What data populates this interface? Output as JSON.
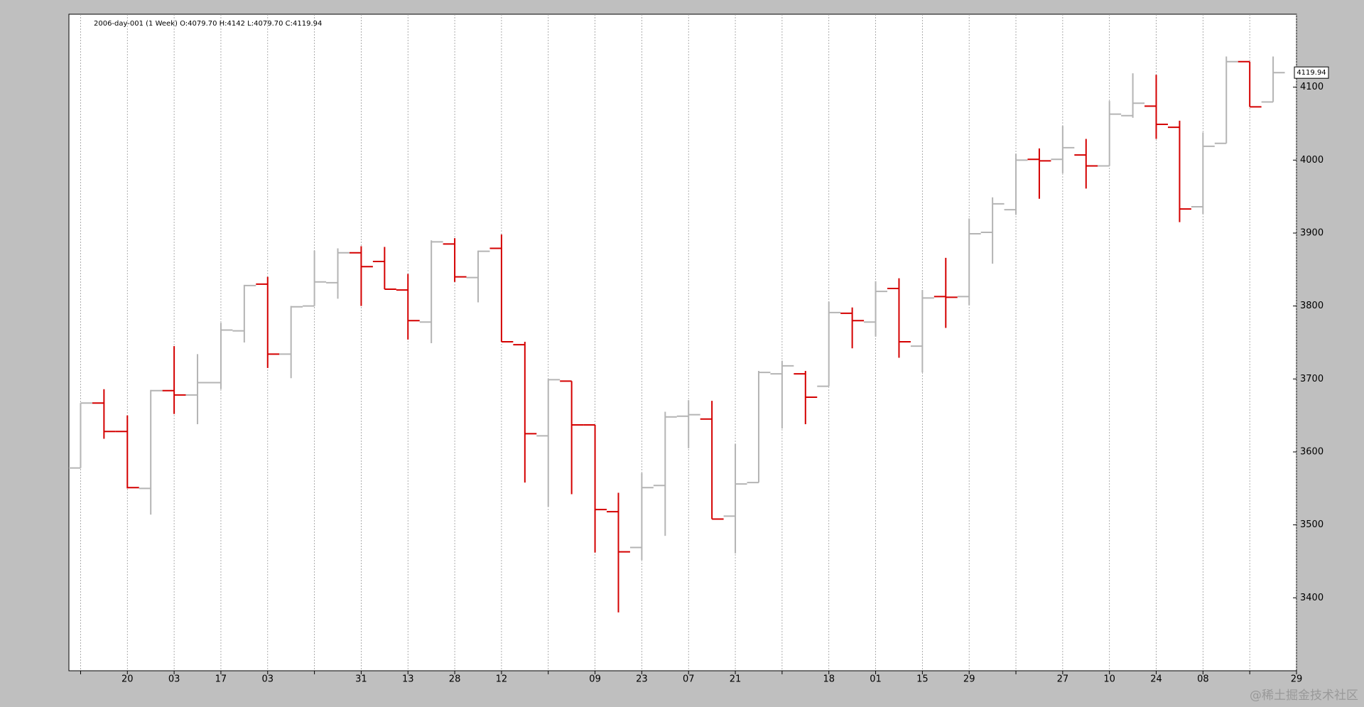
{
  "chart_data": {
    "type": "ohlc",
    "legend": "2006-day-001 (1 Week) O:4079.70 H:4142 L:4079.70 C:4119.94",
    "watermark": "@稀土掘金技术社区",
    "up_color": "#b4b4b4",
    "down_color": "#d40000",
    "open": [
      3578,
      3667,
      3628,
      3550,
      3684,
      3678,
      3695,
      3766,
      3830,
      3734,
      3800,
      3832,
      3873,
      3861,
      3822,
      3778,
      3885,
      3839,
      3879,
      3747,
      3622,
      3697,
      3637,
      3518,
      3469,
      3554,
      3649,
      3645,
      3512,
      3558,
      3707,
      3707,
      3690,
      3790,
      3778,
      3824,
      3745,
      3813,
      3813,
      3901,
      3932,
      4001,
      4001,
      4007,
      3992,
      4061,
      4074,
      4045,
      3936,
      4023,
      4135,
      4079.7
    ],
    "high": [
      3667,
      3686,
      3650,
      3685,
      3745,
      3734,
      3777,
      3829,
      3840,
      3800,
      3876,
      3879,
      3882,
      3881,
      3844,
      3890,
      3893,
      3876,
      3898,
      3751,
      3700,
      3697,
      3637,
      3544,
      3571,
      3655,
      3671,
      3670,
      3611,
      3711,
      3725,
      3711,
      3806,
      3798,
      3834,
      3838,
      3822,
      3866,
      3920,
      3949,
      4009,
      4016,
      4047,
      4029,
      4081,
      4119,
      4117,
      4054,
      4038,
      4142,
      4135,
      4142
    ],
    "low": [
      3578,
      3618,
      3550,
      3514,
      3652,
      3638,
      3686,
      3750,
      3715,
      3701,
      3800,
      3810,
      3800,
      3823,
      3754,
      3749,
      3833,
      3805,
      3751,
      3558,
      3525,
      3542,
      3462,
      3380,
      3452,
      3485,
      3605,
      3508,
      3461,
      3558,
      3632,
      3638,
      3690,
      3742,
      3758,
      3729,
      3709,
      3770,
      3801,
      3858,
      3925,
      3947,
      3982,
      3961,
      3992,
      4058,
      4029,
      3915,
      3926,
      4023,
      4073,
      4079.7
    ],
    "close": [
      3667,
      3628,
      3551,
      3684,
      3678,
      3695,
      3767,
      3828,
      3734,
      3799,
      3833,
      3873,
      3854,
      3823,
      3780,
      3888,
      3840,
      3875,
      3751,
      3625,
      3699,
      3637,
      3521,
      3463,
      3551,
      3648,
      3651,
      3508,
      3556,
      3709,
      3718,
      3675,
      3791,
      3780,
      3820,
      3751,
      3811,
      3812,
      3899,
      3940,
      4000,
      3999,
      4017,
      3992,
      4063,
      4078,
      4049,
      3933,
      4019,
      4135,
      4073,
      4119.94
    ],
    "xlim": [
      -0.5,
      52
    ],
    "xticks": [
      {
        "value": 0,
        "label": null
      },
      {
        "value": 2,
        "label": "20"
      },
      {
        "value": 4,
        "label": "03"
      },
      {
        "value": 6,
        "label": "17"
      },
      {
        "value": 8,
        "label": "03"
      },
      {
        "value": 10,
        "label": null
      },
      {
        "value": 12,
        "label": "31"
      },
      {
        "value": 14,
        "label": "13"
      },
      {
        "value": 16,
        "label": "28"
      },
      {
        "value": 18,
        "label": "12"
      },
      {
        "value": 20,
        "label": null
      },
      {
        "value": 22,
        "label": "09"
      },
      {
        "value": 24,
        "label": "23"
      },
      {
        "value": 26,
        "label": "07"
      },
      {
        "value": 28,
        "label": "21"
      },
      {
        "value": 30,
        "label": null
      },
      {
        "value": 32,
        "label": "18"
      },
      {
        "value": 34,
        "label": "01"
      },
      {
        "value": 36,
        "label": "15"
      },
      {
        "value": 38,
        "label": "29"
      },
      {
        "value": 40,
        "label": null
      },
      {
        "value": 42,
        "label": "27"
      },
      {
        "value": 44,
        "label": "10"
      },
      {
        "value": 46,
        "label": "24"
      },
      {
        "value": 48,
        "label": "08"
      },
      {
        "value": 50,
        "label": null
      },
      {
        "value": 52,
        "label": "29"
      }
    ],
    "ylim": [
      3300,
      4200
    ],
    "yticks": [
      3400,
      3500,
      3600,
      3700,
      3800,
      3900,
      4000,
      4100
    ],
    "grid": true
  }
}
